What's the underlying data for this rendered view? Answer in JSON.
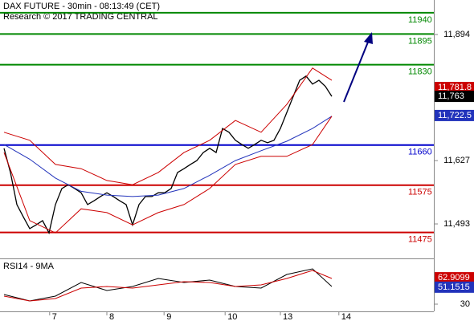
{
  "chart_data": {
    "type": "line",
    "title": "DAX FUTURE - 30min - 08:13:49 (CET)",
    "subtitle": "Research © 2017 TRADING CENTRAL",
    "x": [
      0,
      1,
      2,
      3,
      4,
      5,
      6,
      7,
      8,
      9,
      10,
      11,
      12,
      13,
      14,
      15,
      16,
      17,
      18,
      19,
      20,
      21,
      22,
      23,
      24,
      25,
      26,
      27,
      28,
      29,
      30,
      31,
      32,
      33,
      34,
      35,
      36,
      37,
      38,
      39,
      40,
      41,
      42,
      43,
      44,
      45,
      46,
      47,
      48,
      49,
      50,
      51
    ],
    "xlim": [
      -0.625,
      66.875
    ],
    "xticks": [
      {
        "value": 7.1,
        "label": "7"
      },
      {
        "value": 16,
        "label": "8"
      },
      {
        "value": 24.9,
        "label": "9"
      },
      {
        "value": 34.4,
        "label": "10"
      },
      {
        "value": 43,
        "label": "13"
      },
      {
        "value": 52.1,
        "label": "14"
      }
    ],
    "ylim": [
      11420,
      11967
    ],
    "yticks": [
      {
        "value": 11894,
        "label": "11,894"
      },
      {
        "value": 11627,
        "label": "11,627"
      },
      {
        "value": 11493,
        "label": "11,493"
      }
    ],
    "series": [
      {
        "color": "#000000",
        "values": [
          11653,
          11602,
          11534,
          11508,
          11483,
          11491,
          11500,
          11474,
          11534,
          11568,
          11576,
          11568,
          11559,
          11534,
          11542,
          11551,
          11559,
          11551,
          11542,
          11534,
          11491,
          11534,
          11551,
          11551,
          11559,
          11559,
          11568,
          11602,
          11610,
          11619,
          11627,
          11644,
          11653,
          11644,
          11695,
          11687,
          11670,
          11661,
          11653,
          11661,
          11670,
          11665,
          11670,
          11695,
          11729,
          11763,
          11797,
          11806,
          11789,
          11797,
          11784,
          11763
        ]
      },
      {
        "color": "#cc0000",
        "x": [
          0,
          4,
          8,
          12,
          16,
          20,
          24,
          28,
          32,
          36,
          40,
          44,
          48,
          51
        ],
        "values": [
          11687,
          11670,
          11619,
          11610,
          11585,
          11576,
          11602,
          11644,
          11670,
          11712,
          11687,
          11746,
          11823,
          11797
        ]
      },
      {
        "color": "#2233bb",
        "x": [
          0,
          4,
          8,
          12,
          16,
          20,
          24,
          28,
          32,
          36,
          40,
          44,
          48,
          51
        ],
        "values": [
          11661,
          11630,
          11590,
          11562,
          11554,
          11551,
          11554,
          11568,
          11596,
          11627,
          11648,
          11668,
          11695,
          11721
        ]
      },
      {
        "color": "#cc0000",
        "x": [
          0,
          4,
          8,
          12,
          16,
          20,
          24,
          28,
          32,
          36,
          40,
          44,
          48,
          51
        ],
        "values": [
          11644,
          11500,
          11474,
          11525,
          11517,
          11491,
          11517,
          11534,
          11568,
          11619,
          11636,
          11636,
          11661,
          11721
        ]
      }
    ],
    "levels": [
      {
        "value": 11940,
        "color": "#008800"
      },
      {
        "value": 11895,
        "color": "#008800"
      },
      {
        "value": 11830,
        "color": "#008800"
      },
      {
        "value": 11660,
        "color": "#0000cc"
      },
      {
        "value": 11575,
        "color": "#cc0000"
      },
      {
        "value": 11475,
        "color": "#cc0000"
      }
    ],
    "price_tags": [
      {
        "value": 11781.8,
        "label": "11,781.8",
        "color": "#cc0000"
      },
      {
        "value": 11763,
        "label": "11,763",
        "color": "#000000"
      },
      {
        "value": 11722.5,
        "label": "11,722.5",
        "color": "#2233bb"
      }
    ],
    "rsi": {
      "title": "RSI14 - 9MA",
      "ylim": [
        17,
        87
      ],
      "yticks": [
        30
      ],
      "x": [
        0,
        4,
        8,
        12,
        16,
        20,
        24,
        28,
        32,
        36,
        40,
        44,
        48,
        51
      ],
      "series": [
        {
          "color": "#000000",
          "values": [
            42,
            34,
            40,
            57,
            47,
            52,
            62,
            57,
            60,
            52,
            50,
            67,
            74,
            52
          ]
        },
        {
          "color": "#cc0000",
          "values": [
            40,
            34,
            37,
            50,
            52,
            50,
            54,
            58,
            57,
            52,
            54,
            62,
            72,
            62
          ]
        }
      ],
      "tags": [
        {
          "value": 62.9099,
          "color": "#cc0000"
        },
        {
          "value": 51.1515,
          "color": "#2233bb"
        }
      ]
    }
  }
}
